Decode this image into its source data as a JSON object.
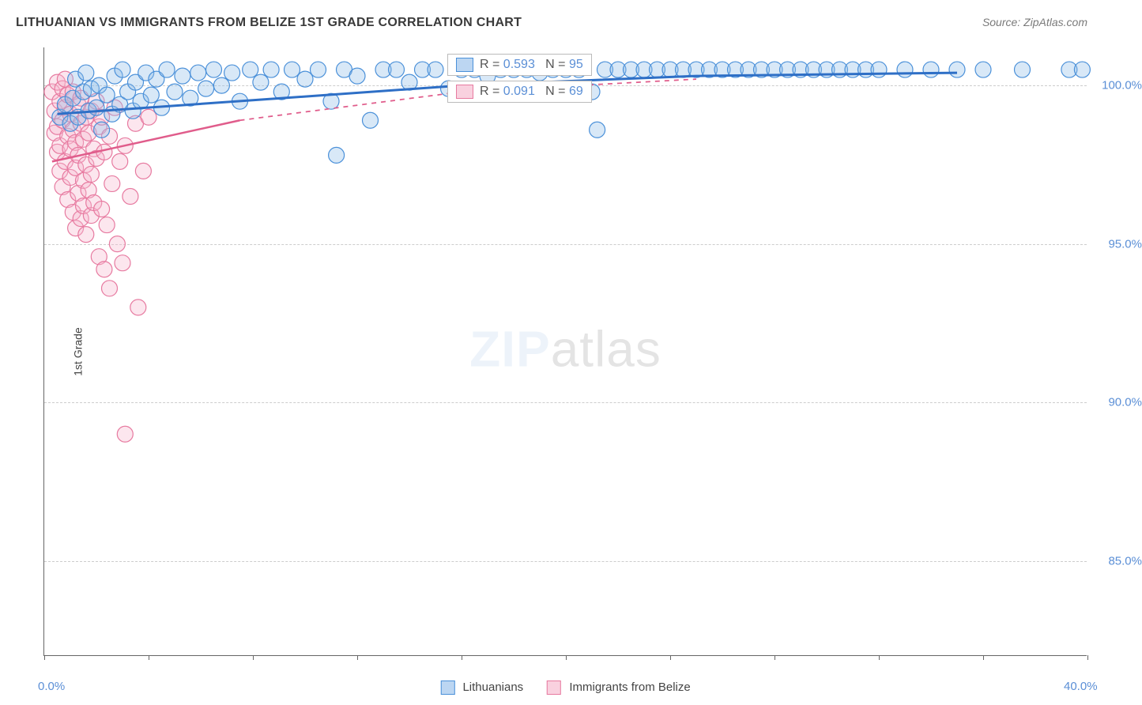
{
  "title": "LITHUANIAN VS IMMIGRANTS FROM BELIZE 1ST GRADE CORRELATION CHART",
  "source_label": "Source: ZipAtlas.com",
  "ylabel": "1st Grade",
  "watermark": {
    "bold": "ZIP",
    "rest": "atlas"
  },
  "chart": {
    "type": "scatter",
    "xlim": [
      0,
      40
    ],
    "ylim": [
      82,
      101.2
    ],
    "xtick_positions": [
      0,
      4,
      8,
      12,
      16,
      20,
      24,
      28,
      32,
      36,
      40
    ],
    "xtick_labels": {
      "0": "0.0%",
      "40": "40.0%"
    },
    "ytick_values": [
      85,
      90,
      95,
      100
    ],
    "ytick_labels": [
      "85.0%",
      "90.0%",
      "95.0%",
      "100.0%"
    ],
    "grid_color": "#cccccc",
    "background_color": "#ffffff",
    "axis_color": "#666666",
    "tick_label_color": "#5b8fd6",
    "marker_radius": 10,
    "marker_fill_opacity": 0.35,
    "marker_stroke_width": 1.2
  },
  "series": [
    {
      "id": "lithuanians",
      "label": "Lithuanians",
      "color_stroke": "#4a90d9",
      "color_fill": "#8fbde8",
      "swatch_fill": "#bcd6f2",
      "swatch_border": "#4a90d9",
      "trend_color": "#2e6fc6",
      "trend_width": 3,
      "trend_dash_after_x": 40,
      "R": "0.593",
      "N": "95",
      "points": [
        [
          0.6,
          99.0
        ],
        [
          0.8,
          99.4
        ],
        [
          1.0,
          98.8
        ],
        [
          1.1,
          99.6
        ],
        [
          1.2,
          100.2
        ],
        [
          1.3,
          99.0
        ],
        [
          1.5,
          99.8
        ],
        [
          1.6,
          100.4
        ],
        [
          1.7,
          99.2
        ],
        [
          1.8,
          99.9
        ],
        [
          2.0,
          99.3
        ],
        [
          2.1,
          100.0
        ],
        [
          2.2,
          98.6
        ],
        [
          2.4,
          99.7
        ],
        [
          2.6,
          99.1
        ],
        [
          2.7,
          100.3
        ],
        [
          2.9,
          99.4
        ],
        [
          3.0,
          100.5
        ],
        [
          3.2,
          99.8
        ],
        [
          3.4,
          99.2
        ],
        [
          3.5,
          100.1
        ],
        [
          3.7,
          99.5
        ],
        [
          3.9,
          100.4
        ],
        [
          4.1,
          99.7
        ],
        [
          4.3,
          100.2
        ],
        [
          4.5,
          99.3
        ],
        [
          4.7,
          100.5
        ],
        [
          5.0,
          99.8
        ],
        [
          5.3,
          100.3
        ],
        [
          5.6,
          99.6
        ],
        [
          5.9,
          100.4
        ],
        [
          6.2,
          99.9
        ],
        [
          6.5,
          100.5
        ],
        [
          6.8,
          100.0
        ],
        [
          7.2,
          100.4
        ],
        [
          7.5,
          99.5
        ],
        [
          7.9,
          100.5
        ],
        [
          8.3,
          100.1
        ],
        [
          8.7,
          100.5
        ],
        [
          9.1,
          99.8
        ],
        [
          9.5,
          100.5
        ],
        [
          10.0,
          100.2
        ],
        [
          10.5,
          100.5
        ],
        [
          11.0,
          99.5
        ],
        [
          11.2,
          97.8
        ],
        [
          11.5,
          100.5
        ],
        [
          12.0,
          100.3
        ],
        [
          12.5,
          98.9
        ],
        [
          13.0,
          100.5
        ],
        [
          13.5,
          100.5
        ],
        [
          14.0,
          100.1
        ],
        [
          14.5,
          100.5
        ],
        [
          15.0,
          100.5
        ],
        [
          15.5,
          99.9
        ],
        [
          16.0,
          100.5
        ],
        [
          16.5,
          100.5
        ],
        [
          17.0,
          100.3
        ],
        [
          17.5,
          100.5
        ],
        [
          18.0,
          100.5
        ],
        [
          18.5,
          100.5
        ],
        [
          19.0,
          100.4
        ],
        [
          19.5,
          100.5
        ],
        [
          20.0,
          100.5
        ],
        [
          20.5,
          100.5
        ],
        [
          21.0,
          99.8
        ],
        [
          21.2,
          98.6
        ],
        [
          21.5,
          100.5
        ],
        [
          22.0,
          100.5
        ],
        [
          22.5,
          100.5
        ],
        [
          23.0,
          100.5
        ],
        [
          23.5,
          100.5
        ],
        [
          24.0,
          100.5
        ],
        [
          24.5,
          100.5
        ],
        [
          25.0,
          100.5
        ],
        [
          25.5,
          100.5
        ],
        [
          26.0,
          100.5
        ],
        [
          26.5,
          100.5
        ],
        [
          27.0,
          100.5
        ],
        [
          27.5,
          100.5
        ],
        [
          28.0,
          100.5
        ],
        [
          28.5,
          100.5
        ],
        [
          29.0,
          100.5
        ],
        [
          29.5,
          100.5
        ],
        [
          30.0,
          100.5
        ],
        [
          30.5,
          100.5
        ],
        [
          31.0,
          100.5
        ],
        [
          31.5,
          100.5
        ],
        [
          32.0,
          100.5
        ],
        [
          33.0,
          100.5
        ],
        [
          34.0,
          100.5
        ],
        [
          35.0,
          100.5
        ],
        [
          36.0,
          100.5
        ],
        [
          37.5,
          100.5
        ],
        [
          39.3,
          100.5
        ],
        [
          39.8,
          100.5
        ]
      ],
      "trend_line": [
        [
          0.5,
          99.1
        ],
        [
          16,
          100.0
        ],
        [
          25,
          100.3
        ],
        [
          35,
          100.4
        ]
      ]
    },
    {
      "id": "belize",
      "label": "Immigrants from Belize",
      "color_stroke": "#e77aa0",
      "color_fill": "#f5b8ce",
      "swatch_fill": "#f9d1df",
      "swatch_border": "#e77aa0",
      "trend_color": "#e05c8b",
      "trend_width": 2.5,
      "trend_dash_after_x": 7.5,
      "R": "0.091",
      "N": "69",
      "points": [
        [
          0.3,
          99.8
        ],
        [
          0.4,
          99.2
        ],
        [
          0.4,
          98.5
        ],
        [
          0.5,
          100.1
        ],
        [
          0.5,
          97.9
        ],
        [
          0.5,
          98.7
        ],
        [
          0.6,
          99.5
        ],
        [
          0.6,
          97.3
        ],
        [
          0.6,
          98.1
        ],
        [
          0.7,
          99.9
        ],
        [
          0.7,
          96.8
        ],
        [
          0.7,
          98.9
        ],
        [
          0.8,
          100.2
        ],
        [
          0.8,
          97.6
        ],
        [
          0.8,
          99.3
        ],
        [
          0.9,
          96.4
        ],
        [
          0.9,
          98.4
        ],
        [
          0.9,
          99.7
        ],
        [
          1.0,
          97.1
        ],
        [
          1.0,
          98.0
        ],
        [
          1.0,
          99.1
        ],
        [
          1.1,
          96.0
        ],
        [
          1.1,
          98.6
        ],
        [
          1.1,
          99.8
        ],
        [
          1.2,
          97.4
        ],
        [
          1.2,
          95.5
        ],
        [
          1.2,
          98.2
        ],
        [
          1.3,
          99.4
        ],
        [
          1.3,
          96.6
        ],
        [
          1.3,
          97.8
        ],
        [
          1.4,
          98.8
        ],
        [
          1.4,
          95.8
        ],
        [
          1.4,
          99.6
        ],
        [
          1.5,
          97.0
        ],
        [
          1.5,
          98.3
        ],
        [
          1.5,
          96.2
        ],
        [
          1.6,
          99.0
        ],
        [
          1.6,
          97.5
        ],
        [
          1.6,
          95.3
        ],
        [
          1.7,
          98.5
        ],
        [
          1.7,
          96.7
        ],
        [
          1.8,
          99.2
        ],
        [
          1.8,
          97.2
        ],
        [
          1.8,
          95.9
        ],
        [
          1.9,
          98.0
        ],
        [
          1.9,
          96.3
        ],
        [
          2.0,
          99.5
        ],
        [
          2.0,
          97.7
        ],
        [
          2.1,
          94.6
        ],
        [
          2.1,
          98.7
        ],
        [
          2.2,
          96.1
        ],
        [
          2.2,
          99.0
        ],
        [
          2.3,
          94.2
        ],
        [
          2.3,
          97.9
        ],
        [
          2.4,
          95.6
        ],
        [
          2.5,
          98.4
        ],
        [
          2.5,
          93.6
        ],
        [
          2.6,
          96.9
        ],
        [
          2.7,
          99.3
        ],
        [
          2.8,
          95.0
        ],
        [
          2.9,
          97.6
        ],
        [
          3.0,
          94.4
        ],
        [
          3.1,
          98.1
        ],
        [
          3.1,
          89.0
        ],
        [
          3.3,
          96.5
        ],
        [
          3.5,
          98.8
        ],
        [
          3.6,
          93.0
        ],
        [
          3.8,
          97.3
        ],
        [
          4.0,
          99.0
        ]
      ],
      "trend_line": [
        [
          0.3,
          97.6
        ],
        [
          7.5,
          98.9
        ],
        [
          16,
          99.8
        ],
        [
          25,
          100.2
        ]
      ]
    }
  ],
  "stat_boxes": [
    {
      "series": 0,
      "text_parts": [
        "R = ",
        "0.593",
        "   N = ",
        "95"
      ]
    },
    {
      "series": 1,
      "text_parts": [
        "R = ",
        "0.091",
        "   N = ",
        "69"
      ]
    }
  ]
}
